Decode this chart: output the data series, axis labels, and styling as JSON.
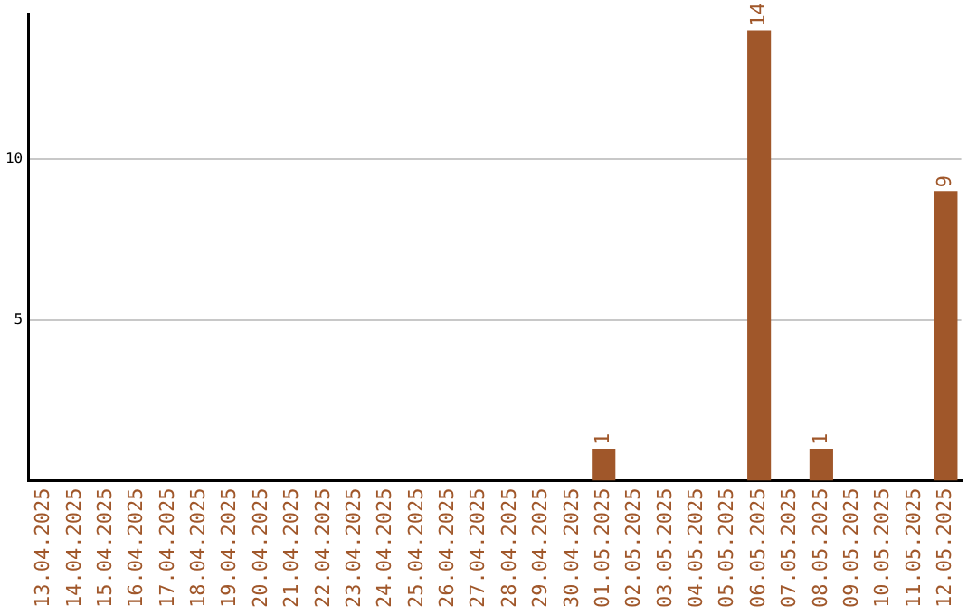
{
  "chart_data": {
    "type": "bar",
    "categories": [
      "13.04.2025",
      "14.04.2025",
      "15.04.2025",
      "16.04.2025",
      "17.04.2025",
      "18.04.2025",
      "19.04.2025",
      "20.04.2025",
      "21.04.2025",
      "22.04.2025",
      "23.04.2025",
      "24.04.2025",
      "25.04.2025",
      "26.04.2025",
      "27.04.2025",
      "28.04.2025",
      "29.04.2025",
      "30.04.2025",
      "01.05.2025",
      "02.05.2025",
      "03.05.2025",
      "04.05.2025",
      "05.05.2025",
      "06.05.2025",
      "07.05.2025",
      "08.05.2025",
      "09.05.2025",
      "10.05.2025",
      "11.05.2025",
      "12.05.2025"
    ],
    "values": [
      0,
      0,
      0,
      0,
      0,
      0,
      0,
      0,
      0,
      0,
      0,
      0,
      0,
      0,
      0,
      0,
      0,
      0,
      1,
      0,
      0,
      0,
      0,
      14,
      0,
      1,
      0,
      0,
      0,
      9
    ],
    "value_labels": [
      null,
      null,
      null,
      null,
      null,
      null,
      null,
      null,
      null,
      null,
      null,
      null,
      null,
      null,
      null,
      null,
      null,
      null,
      "1",
      null,
      null,
      null,
      null,
      "14",
      null,
      "1",
      null,
      null,
      null,
      "9"
    ],
    "color": "#a0572a",
    "ylim": [
      0,
      14.5
    ],
    "yticks": [
      5,
      10
    ],
    "grid": "y",
    "legend": false
  }
}
